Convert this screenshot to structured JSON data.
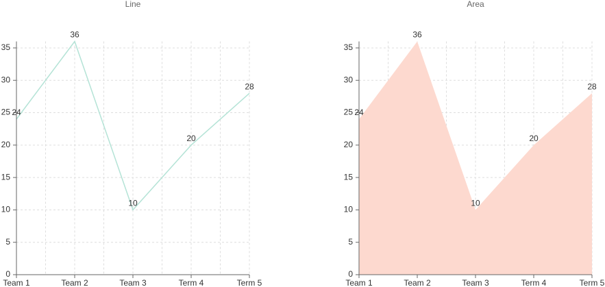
{
  "chart_data": [
    {
      "type": "line",
      "title": "Line",
      "categories": [
        "Team 1",
        "Team 2",
        "Team 3",
        "Term 4",
        "Term 5"
      ],
      "values": [
        24,
        36,
        10,
        20,
        28
      ],
      "color": "#b4e3d6",
      "ylim": [
        0,
        36
      ],
      "yticks": [
        0,
        5,
        10,
        15,
        20,
        25,
        30,
        35
      ],
      "grid": true
    },
    {
      "type": "area",
      "title": "Area",
      "categories": [
        "Team 1",
        "Team 2",
        "Team 3",
        "Term 4",
        "Term 5"
      ],
      "values": [
        24,
        36,
        10,
        20,
        28
      ],
      "color": "#fdd9cf",
      "ylim": [
        0,
        36
      ],
      "yticks": [
        0,
        5,
        10,
        15,
        20,
        25,
        30,
        35
      ],
      "grid": true
    }
  ]
}
